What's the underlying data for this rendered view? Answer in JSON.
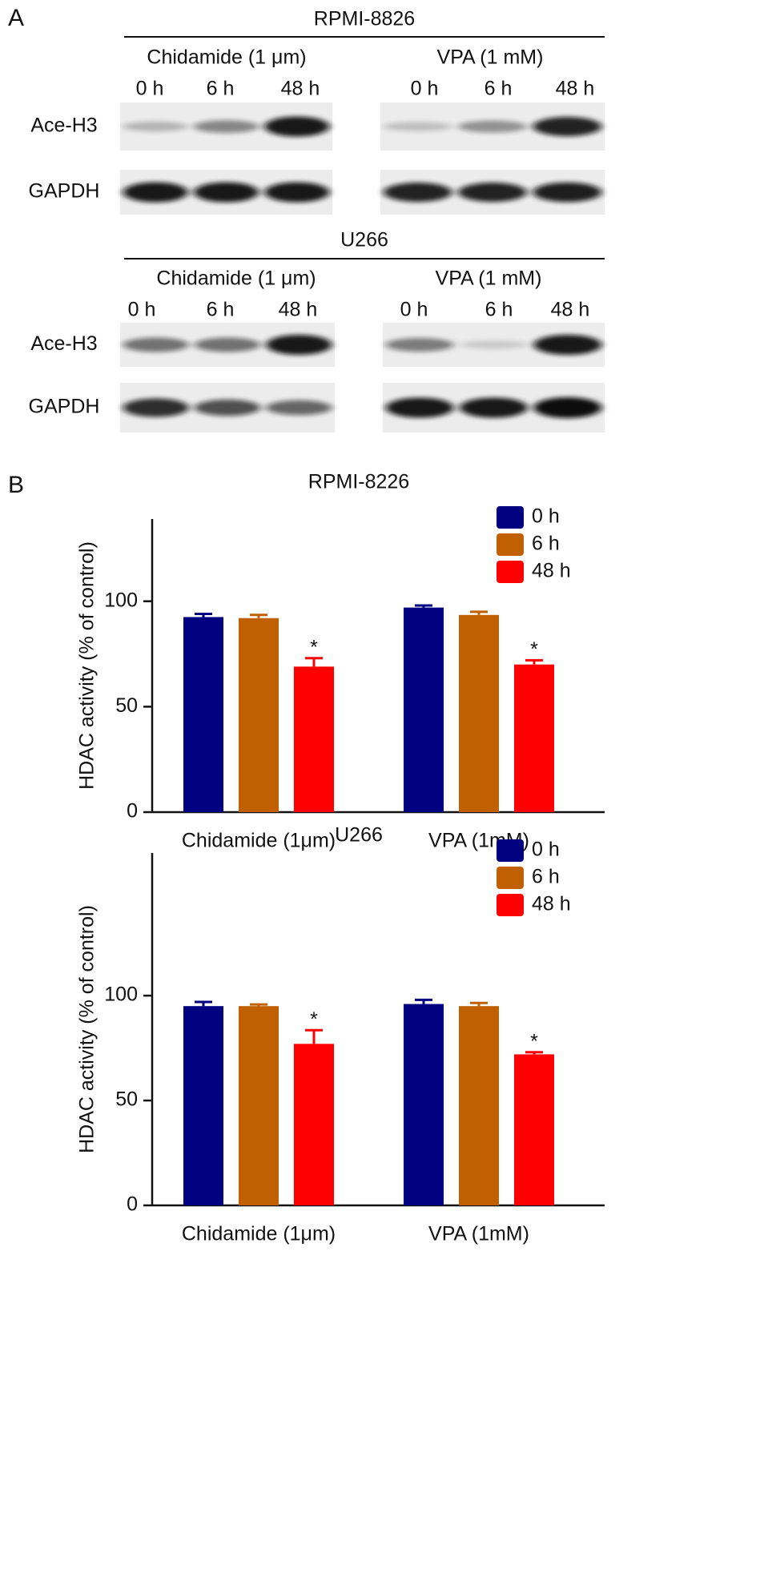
{
  "panel_a": {
    "label": "A",
    "blots": [
      {
        "cell_line": "RPMI-8826",
        "treatments": [
          {
            "name": "Chidamide (1 μm)",
            "times": [
              "0 h",
              "6 h",
              "48 h"
            ]
          },
          {
            "name": "VPA (1 mM)",
            "times": [
              "0 h",
              "6 h",
              "48 h"
            ]
          }
        ],
        "rows": [
          "Ace-H3",
          "GAPDH"
        ]
      },
      {
        "cell_line": "U266",
        "treatments": [
          {
            "name": "Chidamide (1 μm)",
            "times": [
              "0 h",
              "6 h",
              "48 h"
            ]
          },
          {
            "name": "VPA (1 mM)",
            "times": [
              "0 h",
              "6 h",
              "48 h"
            ]
          }
        ],
        "rows": [
          "Ace-H3",
          "GAPDH"
        ]
      }
    ]
  },
  "panel_b": {
    "label": "B"
  },
  "chart_data": [
    {
      "type": "bar",
      "title": "RPMI-8226",
      "ylabel": "HDAC activity (% of control)",
      "categories": [
        "Chidamide (1μm)",
        "VPA (1mM)"
      ],
      "series": [
        {
          "name": "0 h",
          "color": "#000080",
          "values": [
            92.5,
            97
          ],
          "errors": [
            1.5,
            1
          ]
        },
        {
          "name": "6 h",
          "color": "#c06000",
          "values": [
            92,
            93.5
          ],
          "errors": [
            1.5,
            1.5
          ]
        },
        {
          "name": "48 h",
          "color": "#ff0000",
          "values": [
            69,
            70
          ],
          "errors": [
            4,
            2
          ],
          "annotations": [
            "*",
            "*"
          ]
        }
      ],
      "ylim": [
        0,
        139
      ],
      "yticks": [
        0,
        50,
        100
      ],
      "legend": "upper right"
    },
    {
      "type": "bar",
      "title": "U266",
      "ylabel": "HDAC activity (% of control)",
      "categories": [
        "Chidamide (1μm)",
        "VPA (1mM)"
      ],
      "series": [
        {
          "name": "0 h",
          "color": "#000080",
          "values": [
            95,
            96
          ],
          "errors": [
            2,
            2
          ]
        },
        {
          "name": "6 h",
          "color": "#c06000",
          "values": [
            95,
            95
          ],
          "errors": [
            0.8,
            1.5
          ]
        },
        {
          "name": "48 h",
          "color": "#ff0000",
          "values": [
            77,
            72
          ],
          "errors": [
            6.5,
            1
          ],
          "annotations": [
            "*",
            "*"
          ]
        }
      ],
      "ylim": [
        0,
        168
      ],
      "yticks": [
        0,
        50,
        100
      ],
      "legend": "upper right"
    }
  ]
}
